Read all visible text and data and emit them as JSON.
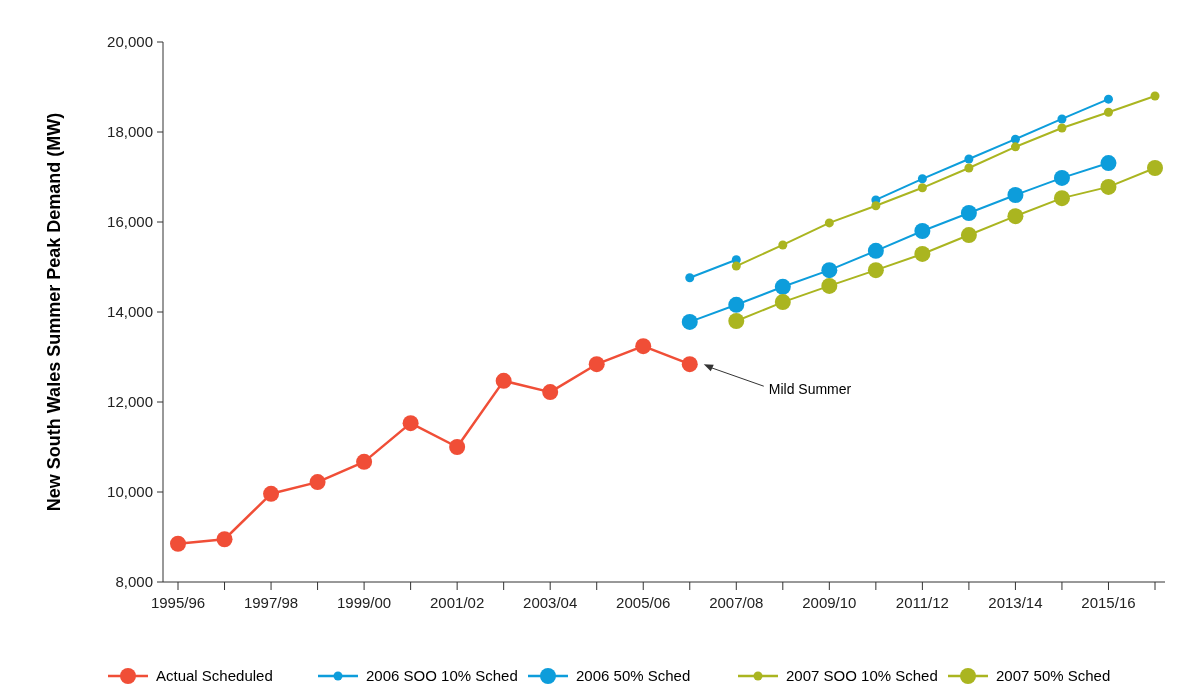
{
  "chart_data": {
    "type": "line",
    "ylabel": "New South Wales Summer Peak Demand (MW)",
    "categories": [
      "1995/96",
      null,
      "1997/98",
      null,
      "1999/00",
      null,
      "2001/02",
      null,
      "2003/04",
      null,
      "2005/06",
      null,
      "2007/08",
      null,
      "2009/10",
      null,
      "2011/12",
      null,
      "2013/14",
      null,
      "2015/16",
      null
    ],
    "series": [
      {
        "name": "Actual Scheduled",
        "color": "#f04e37",
        "values": [
          8850,
          8950,
          9960,
          10220,
          10670,
          11530,
          11000,
          12470,
          12220,
          12840,
          13240,
          12840,
          null,
          null,
          null,
          null,
          null,
          null,
          null,
          null,
          null,
          null
        ]
      },
      {
        "name": "2006 SOO 10% Sched",
        "color": "#0d9ddb",
        "values": [
          null,
          null,
          null,
          null,
          null,
          null,
          null,
          null,
          null,
          null,
          null,
          14760,
          15160,
          null,
          null,
          16490,
          16960,
          17400,
          17840,
          18290,
          18730,
          null
        ]
      },
      {
        "name": "2006 50% Sched",
        "color": "#0d9ddb",
        "values": [
          null,
          null,
          null,
          null,
          null,
          null,
          null,
          null,
          null,
          null,
          null,
          13780,
          14160,
          14560,
          14930,
          15360,
          15800,
          16200,
          16600,
          16980,
          17310,
          null
        ]
      },
      {
        "name": "2007 SOO 10% Sched",
        "color": "#aab520",
        "values": [
          null,
          null,
          null,
          null,
          null,
          null,
          null,
          null,
          null,
          null,
          null,
          null,
          15020,
          15490,
          15980,
          16360,
          16760,
          17200,
          17670,
          18090,
          18440,
          18800
        ]
      },
      {
        "name": "2007 50% Sched",
        "color": "#aab520",
        "values": [
          null,
          null,
          null,
          null,
          null,
          null,
          null,
          null,
          null,
          null,
          null,
          null,
          13800,
          14220,
          14580,
          14930,
          15290,
          15710,
          16130,
          16530,
          16780,
          17200
        ]
      }
    ],
    "ylim": [
      8000,
      20000
    ],
    "yticks": [
      {
        "value": 8000,
        "label": "8,000"
      },
      {
        "value": 10000,
        "label": "10,000"
      },
      {
        "value": 12000,
        "label": "12,000"
      },
      {
        "value": 14000,
        "label": "14,000"
      },
      {
        "value": 16000,
        "label": "16,000"
      },
      {
        "value": 18000,
        "label": "18,000"
      },
      {
        "value": 20000,
        "label": "20,000"
      }
    ],
    "annotations": [
      "Mild Summer"
    ],
    "legend": "bottom",
    "marker": "circle",
    "line_style": "solid"
  }
}
